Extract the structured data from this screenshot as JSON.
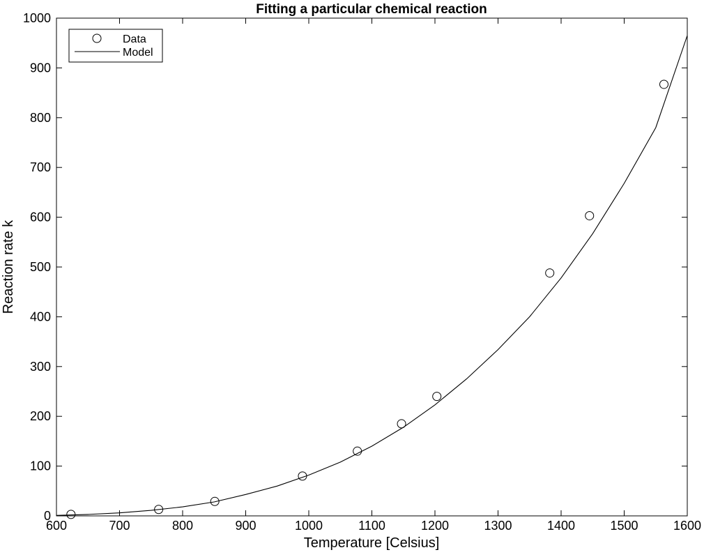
{
  "chart_data": {
    "type": "scatter",
    "title": "Fitting a particular chemical reaction",
    "xlabel": "Temperature [Celsius]",
    "ylabel": "Reaction rate k",
    "xlim": [
      600,
      1600
    ],
    "ylim": [
      0,
      1000
    ],
    "xticks": [
      600,
      700,
      800,
      900,
      1000,
      1100,
      1200,
      1300,
      1400,
      1500,
      1600
    ],
    "yticks": [
      0,
      100,
      200,
      300,
      400,
      500,
      600,
      700,
      800,
      900,
      1000
    ],
    "grid": false,
    "legend_position": "top-left",
    "series": [
      {
        "name": "Data",
        "kind": "markers",
        "marker": "circle",
        "color": "#000000",
        "x": [
          623,
          762,
          851,
          990,
          1077,
          1147,
          1203,
          1382,
          1445,
          1563
        ],
        "y": [
          3,
          13,
          29,
          80,
          130,
          185,
          240,
          488,
          603,
          867
        ]
      },
      {
        "name": "Model",
        "kind": "line",
        "color": "#000000",
        "x": [
          600,
          650,
          700,
          750,
          800,
          850,
          900,
          950,
          1000,
          1050,
          1100,
          1150,
          1200,
          1250,
          1300,
          1350,
          1400,
          1450,
          1500,
          1550,
          1600
        ],
        "y": [
          1,
          3,
          6,
          11,
          18,
          28,
          43,
          60,
          82,
          108,
          140,
          178,
          223,
          275,
          334,
          400,
          478,
          567,
          668,
          780,
          965
        ]
      }
    ]
  }
}
